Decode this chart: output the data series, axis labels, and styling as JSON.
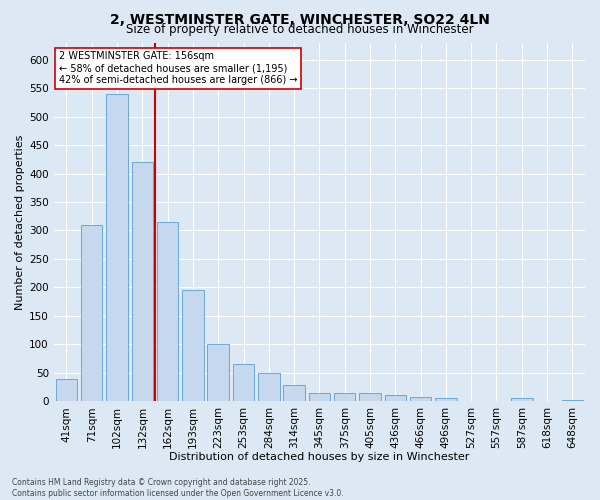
{
  "title": "2, WESTMINSTER GATE, WINCHESTER, SO22 4LN",
  "subtitle": "Size of property relative to detached houses in Winchester",
  "xlabel": "Distribution of detached houses by size in Winchester",
  "ylabel": "Number of detached properties",
  "categories": [
    "41sqm",
    "71sqm",
    "102sqm",
    "132sqm",
    "162sqm",
    "193sqm",
    "223sqm",
    "253sqm",
    "284sqm",
    "314sqm",
    "345sqm",
    "375sqm",
    "405sqm",
    "436sqm",
    "466sqm",
    "496sqm",
    "527sqm",
    "557sqm",
    "587sqm",
    "618sqm",
    "648sqm"
  ],
  "values": [
    40,
    310,
    540,
    420,
    315,
    195,
    100,
    65,
    50,
    28,
    15,
    15,
    15,
    12,
    7,
    5,
    0,
    0,
    5,
    0,
    3
  ],
  "bar_color": "#c5d8ed",
  "bar_edge_color": "#5a9fd4",
  "vline_color": "#cc0000",
  "vline_pos": 3.5,
  "annotation_text": "2 WESTMINSTER GATE: 156sqm\n← 58% of detached houses are smaller (1,195)\n42% of semi-detached houses are larger (866) →",
  "annotation_box_facecolor": "#ffffff",
  "annotation_box_edgecolor": "#cc0000",
  "ylim": [
    0,
    630
  ],
  "yticks": [
    0,
    50,
    100,
    150,
    200,
    250,
    300,
    350,
    400,
    450,
    500,
    550,
    600
  ],
  "bg_color": "#dce9f5",
  "footer_text": "Contains HM Land Registry data © Crown copyright and database right 2025.\nContains public sector information licensed under the Open Government Licence v3.0.",
  "title_fontsize": 10,
  "subtitle_fontsize": 8.5,
  "xlabel_fontsize": 8,
  "ylabel_fontsize": 8,
  "tick_fontsize": 7.5,
  "annotation_fontsize": 7,
  "footer_fontsize": 5.5
}
